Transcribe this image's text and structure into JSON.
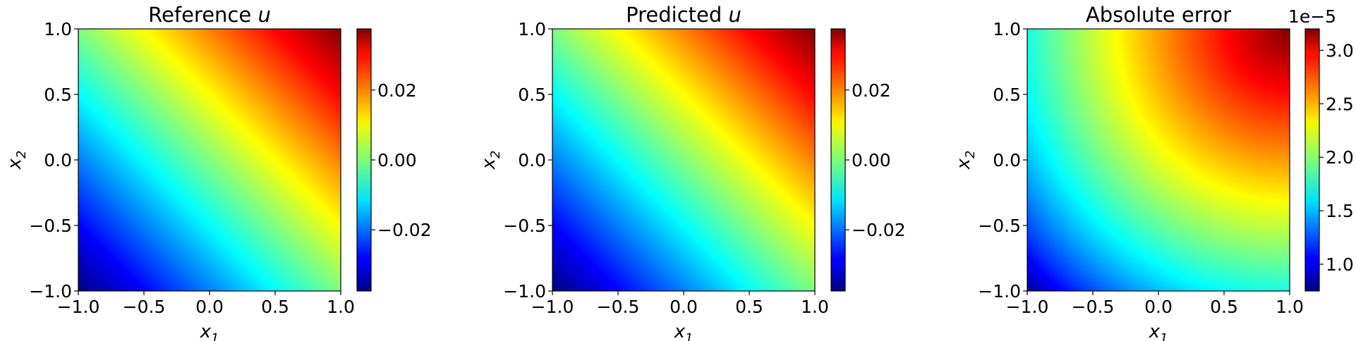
{
  "chart_data": [
    {
      "type": "heatmap",
      "title_text": "Reference ",
      "title_var": "u",
      "xlabel": "x",
      "xlabel_sub": "1",
      "ylabel": "x",
      "ylabel_sub": "2",
      "xlim": [
        -1.0,
        1.0
      ],
      "ylim": [
        -1.0,
        1.0
      ],
      "xticks": [
        "−1.0",
        "−0.5",
        "0.0",
        "0.5",
        "1.0"
      ],
      "yticks": [
        "−1.0",
        "−0.5",
        "0.0",
        "0.5",
        "1.0"
      ],
      "colormap": "jet",
      "field": "linear_diagonal",
      "value_range": [
        -0.0375,
        0.0375
      ],
      "colorbar_ticks": [
        {
          "value": -0.02,
          "label": "−0.02"
        },
        {
          "value": 0.0,
          "label": "0.00"
        },
        {
          "value": 0.02,
          "label": "0.02"
        }
      ],
      "colorbar_offset": ""
    },
    {
      "type": "heatmap",
      "title_text": "Predicted ",
      "title_var": "u",
      "xlabel": "x",
      "xlabel_sub": "1",
      "ylabel": "x",
      "ylabel_sub": "2",
      "xlim": [
        -1.0,
        1.0
      ],
      "ylim": [
        -1.0,
        1.0
      ],
      "xticks": [
        "−1.0",
        "−0.5",
        "0.0",
        "0.5",
        "1.0"
      ],
      "yticks": [
        "−1.0",
        "−0.5",
        "0.0",
        "0.5",
        "1.0"
      ],
      "colormap": "jet",
      "field": "linear_diagonal",
      "value_range": [
        -0.0375,
        0.0375
      ],
      "colorbar_ticks": [
        {
          "value": -0.02,
          "label": "−0.02"
        },
        {
          "value": 0.0,
          "label": "0.00"
        },
        {
          "value": 0.02,
          "label": "0.02"
        }
      ],
      "colorbar_offset": ""
    },
    {
      "type": "heatmap",
      "title_text": "Absolute error",
      "title_var": "",
      "xlabel": "x",
      "xlabel_sub": "1",
      "ylabel": "x",
      "ylabel_sub": "2",
      "xlim": [
        -1.0,
        1.0
      ],
      "ylim": [
        -1.0,
        1.0
      ],
      "xticks": [
        "−1.0",
        "−0.5",
        "0.0",
        "0.5",
        "1.0"
      ],
      "yticks": [
        "−1.0",
        "−0.5",
        "0.0",
        "0.5",
        "1.0"
      ],
      "colormap": "jet",
      "field": "radial_from_top_right",
      "value_range": [
        0.75,
        3.2
      ],
      "colorbar_ticks": [
        {
          "value": 1.0,
          "label": "1.0"
        },
        {
          "value": 1.5,
          "label": "1.5"
        },
        {
          "value": 2.0,
          "label": "2.0"
        },
        {
          "value": 2.5,
          "label": "2.5"
        },
        {
          "value": 3.0,
          "label": "3.0"
        }
      ],
      "colorbar_offset": "1e−5"
    }
  ]
}
